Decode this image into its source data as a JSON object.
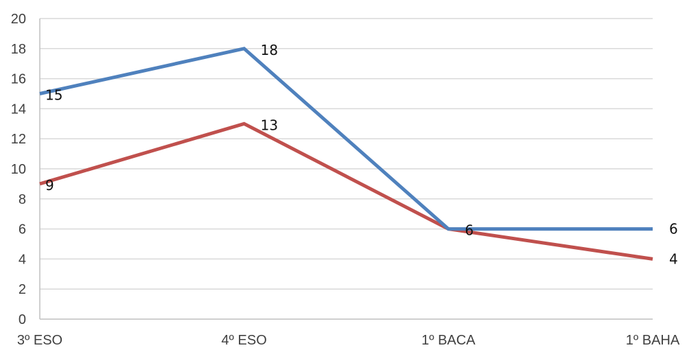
{
  "chart_data": {
    "type": "line",
    "title": "",
    "xlabel": "",
    "ylabel": "",
    "categories": [
      "3º ESO",
      "4º ESO",
      "1º BACA",
      "1º BAHA"
    ],
    "ylim": [
      0,
      20
    ],
    "yticks": [
      "0",
      "2",
      "4",
      "6",
      "8",
      "10",
      "12",
      "14",
      "16",
      "18",
      "20"
    ],
    "grid": true,
    "legend": "none",
    "series": [
      {
        "values": [
          15,
          18,
          6,
          6
        ],
        "labels": [
          "15",
          "18",
          "6",
          "6"
        ],
        "color": "#4f81bd"
      },
      {
        "values": [
          9,
          13,
          6,
          4
        ],
        "labels": [
          "9",
          "13",
          "",
          "4"
        ],
        "color": "#c0504d"
      }
    ]
  }
}
